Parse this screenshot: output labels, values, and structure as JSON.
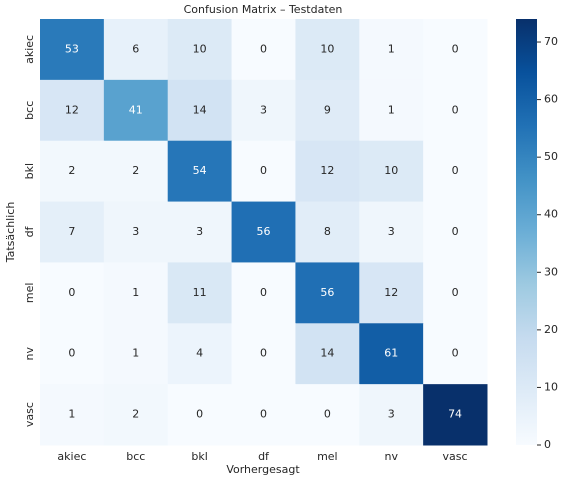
{
  "chart_data": {
    "type": "heatmap",
    "title": "Confusion Matrix – Testdaten",
    "xlabel": "Vorhergesagt",
    "ylabel": "Tatsächlich",
    "x": [
      "akiec",
      "bcc",
      "bkl",
      "df",
      "mel",
      "nv",
      "vasc"
    ],
    "y": [
      "akiec",
      "bcc",
      "bkl",
      "df",
      "mel",
      "nv",
      "vasc"
    ],
    "values": [
      [
        53,
        6,
        10,
        0,
        10,
        1,
        0
      ],
      [
        12,
        41,
        14,
        3,
        9,
        1,
        0
      ],
      [
        2,
        2,
        54,
        0,
        12,
        10,
        0
      ],
      [
        7,
        3,
        3,
        56,
        8,
        3,
        0
      ],
      [
        0,
        1,
        11,
        0,
        56,
        12,
        0
      ],
      [
        0,
        1,
        4,
        0,
        14,
        61,
        0
      ],
      [
        1,
        2,
        0,
        0,
        0,
        3,
        74
      ]
    ],
    "clim": [
      0,
      74
    ],
    "cticks": [
      0,
      10,
      20,
      30,
      40,
      50,
      60,
      70
    ],
    "colorscale": [
      "#f7fbff",
      "#deebf7",
      "#c6dbef",
      "#9ecae1",
      "#6baed6",
      "#4292c6",
      "#2171b5",
      "#08519c",
      "#08306b"
    ]
  }
}
